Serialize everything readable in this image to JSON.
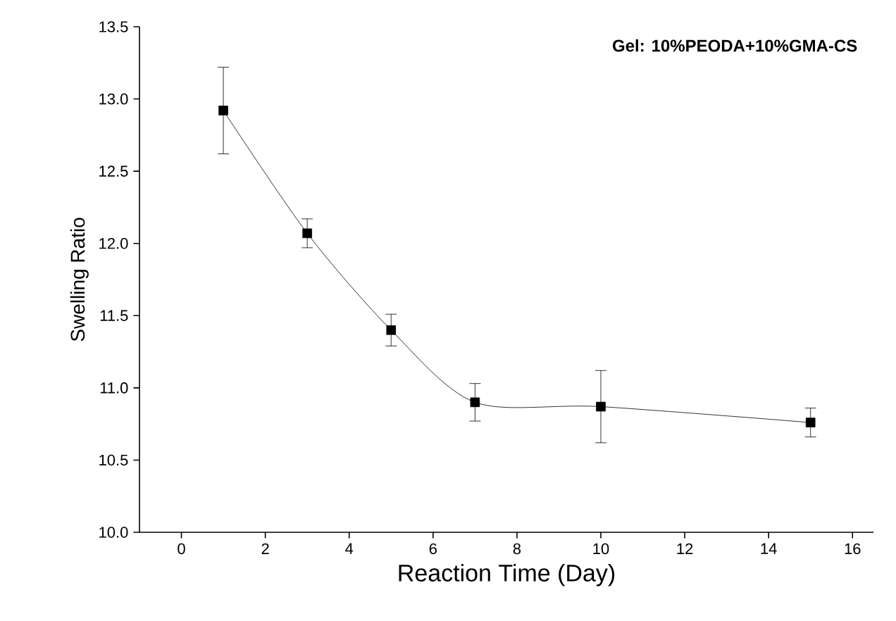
{
  "chart_data": {
    "type": "line",
    "xlabel": "Reaction Time (Day)",
    "ylabel": "Swelling Ratio",
    "annotations": [
      "Gel: 10%PEODA+10%GMA-CS"
    ],
    "x": [
      1,
      3,
      5,
      7,
      10,
      15
    ],
    "series": [
      {
        "color": "#000000",
        "values": [
          12.92,
          12.07,
          11.4,
          10.9,
          10.87,
          10.76
        ],
        "errors": [
          0.3,
          0.1,
          0.11,
          0.13,
          0.25,
          0.1
        ]
      }
    ],
    "xlim": [
      -1,
      16.5
    ],
    "xticks": [
      0,
      2,
      4,
      6,
      8,
      10,
      12,
      14,
      16
    ],
    "ylim": [
      10.0,
      13.5
    ],
    "yticks": [
      {
        "value": 10.0,
        "label": "10.0"
      },
      {
        "value": 10.5,
        "label": "10.5"
      },
      {
        "value": 11.0,
        "label": "11.0"
      },
      {
        "value": 11.5,
        "label": "11.5"
      },
      {
        "value": 12.0,
        "label": "12.0"
      },
      {
        "value": 12.5,
        "label": "12.5"
      },
      {
        "value": 13.0,
        "label": "13.0"
      },
      {
        "value": 13.5,
        "label": "13.5"
      }
    ],
    "grid": false,
    "marker": "square",
    "line_style": "solid"
  }
}
